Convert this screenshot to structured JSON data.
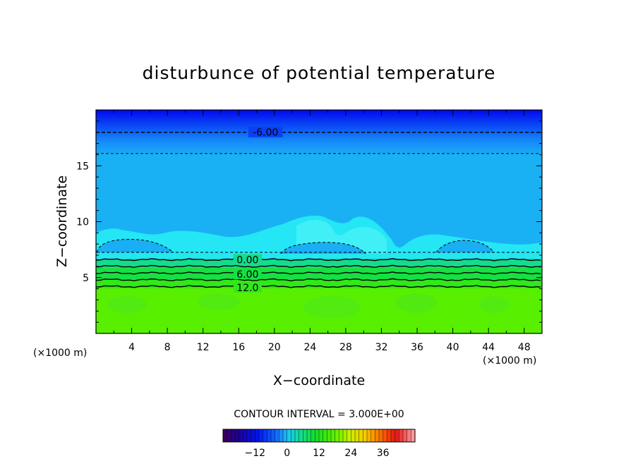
{
  "chart_data": {
    "type": "contour",
    "title": "disturbunce of potential temperature",
    "xlabel": "X−coordinate",
    "ylabel": "Z−coordinate",
    "x_unit": "(×1000 m)",
    "y_unit": "(×1000 m)",
    "xlim": [
      0,
      50
    ],
    "ylim": [
      0,
      20
    ],
    "x_ticks": [
      4,
      8,
      12,
      16,
      20,
      24,
      28,
      32,
      36,
      40,
      44,
      48
    ],
    "y_ticks": [
      5,
      10,
      15
    ],
    "contour_interval_text": "CONTOUR INTERVAL = 3.000E+00",
    "contour_labels": [
      {
        "text": "-6.00",
        "x": 19,
        "z": 18.0
      },
      {
        "text": "0.00",
        "x": 17,
        "z": 6.6
      },
      {
        "text": "6.00",
        "x": 17,
        "z": 5.3
      },
      {
        "text": "12.0",
        "x": 17,
        "z": 4.1
      }
    ],
    "contour_lines": [
      {
        "z": 18.0,
        "style": "dashed"
      },
      {
        "z": 16.1,
        "style": "dashed"
      },
      {
        "z": 6.6,
        "style": "solid"
      },
      {
        "z": 6.0,
        "style": "solid"
      },
      {
        "z": 5.4,
        "style": "solid"
      },
      {
        "z": 4.8,
        "style": "solid"
      },
      {
        "z": 4.2,
        "style": "solid"
      }
    ],
    "colorbar": {
      "ticks": [
        -12,
        0,
        12,
        24,
        36
      ],
      "tick_labels": [
        "−12",
        "0",
        "12",
        "24",
        "36"
      ],
      "range": [
        -24,
        48
      ]
    },
    "colors": {
      "deep_blue": "#0010f0",
      "mid_blue": "#1478f8",
      "sky_blue": "#1ab0f4",
      "cyan": "#22e4f4",
      "teal_green": "#14d890",
      "green": "#16e02a",
      "lime": "#58f000"
    }
  }
}
